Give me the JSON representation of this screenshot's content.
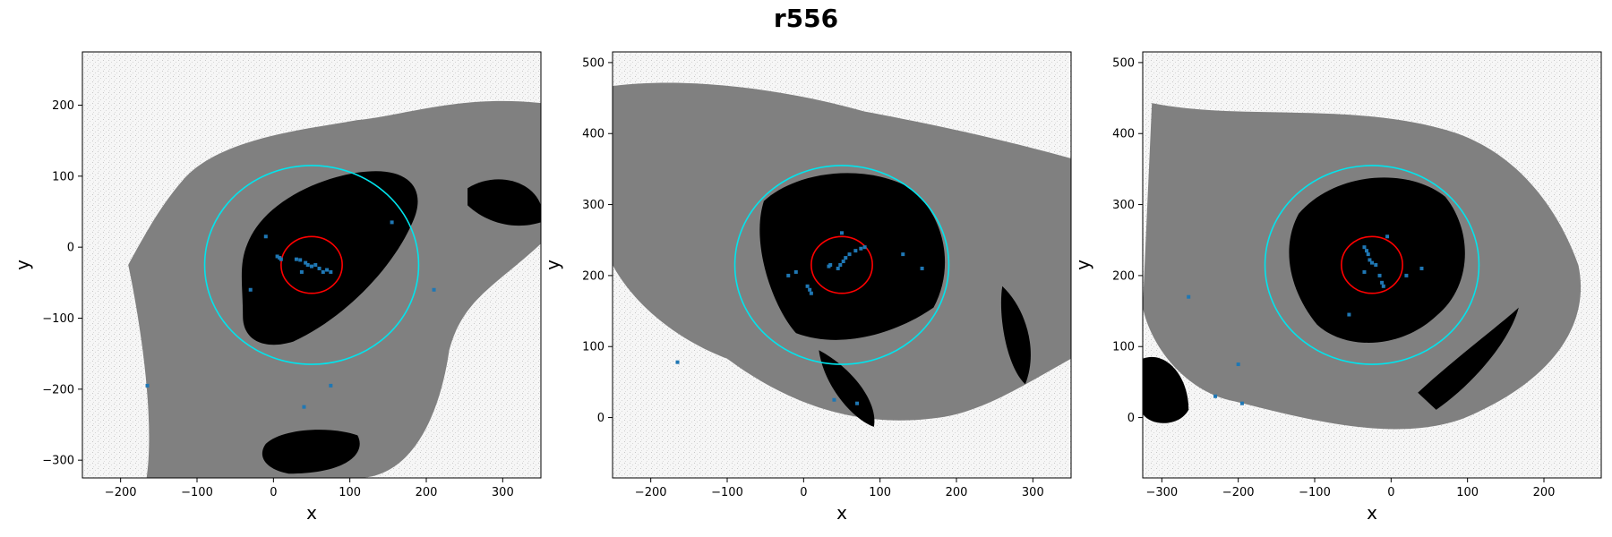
{
  "figure": {
    "title": "r556"
  },
  "colors": {
    "background_speckle": "#f4f4f4",
    "mask_gray": "#808080",
    "object_black": "#000000",
    "points": "#1f77b4",
    "outer_circle": "#00e5ee",
    "inner_circle": "#ff0000",
    "axes": "#000000"
  },
  "chart_data": [
    {
      "type": "scatter",
      "title": "",
      "xlabel": "x",
      "ylabel": "y",
      "xlim": [
        -250,
        350
      ],
      "ylim": [
        -325,
        275
      ],
      "xticks": [
        -200,
        -100,
        0,
        100,
        200,
        300
      ],
      "yticks": [
        -300,
        -200,
        -100,
        0,
        100,
        200
      ],
      "grid": false,
      "circles": [
        {
          "name": "outer",
          "cx": 50,
          "cy": -25,
          "r": 140,
          "color": "#00e5ee"
        },
        {
          "name": "inner",
          "cx": 50,
          "cy": -25,
          "r": 40,
          "color": "#ff0000"
        }
      ],
      "points": [
        [
          5,
          -13
        ],
        [
          8,
          -15
        ],
        [
          10,
          -17
        ],
        [
          30,
          -17
        ],
        [
          35,
          -18
        ],
        [
          37,
          -35
        ],
        [
          42,
          -22
        ],
        [
          45,
          -25
        ],
        [
          50,
          -27
        ],
        [
          55,
          -25
        ],
        [
          60,
          -30
        ],
        [
          65,
          -35
        ],
        [
          70,
          -32
        ],
        [
          75,
          -35
        ],
        [
          -10,
          15
        ],
        [
          155,
          35
        ],
        [
          -30,
          -60
        ],
        [
          210,
          -60
        ],
        [
          -165,
          -195
        ],
        [
          75,
          -195
        ],
        [
          40,
          -225
        ]
      ]
    },
    {
      "type": "scatter",
      "title": "",
      "xlabel": "x",
      "ylabel": "y",
      "xlim": [
        -250,
        350
      ],
      "ylim": [
        -85,
        515
      ],
      "xticks": [
        -200,
        -100,
        0,
        100,
        200,
        300
      ],
      "yticks": [
        0,
        100,
        200,
        300,
        400,
        500
      ],
      "grid": false,
      "circles": [
        {
          "name": "outer",
          "cx": 50,
          "cy": 215,
          "r": 140,
          "color": "#00e5ee"
        },
        {
          "name": "inner",
          "cx": 50,
          "cy": 215,
          "r": 40,
          "color": "#ff0000"
        }
      ],
      "points": [
        [
          45,
          210
        ],
        [
          48,
          215
        ],
        [
          52,
          220
        ],
        [
          55,
          225
        ],
        [
          60,
          230
        ],
        [
          68,
          235
        ],
        [
          75,
          238
        ],
        [
          80,
          240
        ],
        [
          50,
          260
        ],
        [
          35,
          215
        ],
        [
          33,
          213
        ],
        [
          5,
          185
        ],
        [
          8,
          180
        ],
        [
          10,
          175
        ],
        [
          -20,
          200
        ],
        [
          -10,
          205
        ],
        [
          130,
          230
        ],
        [
          155,
          210
        ],
        [
          -165,
          78
        ],
        [
          40,
          25
        ],
        [
          70,
          20
        ]
      ]
    },
    {
      "type": "scatter",
      "title": "",
      "xlabel": "x",
      "ylabel": "y",
      "xlim": [
        -325,
        275
      ],
      "ylim": [
        -85,
        515
      ],
      "xticks": [
        -300,
        -200,
        -100,
        0,
        100,
        200
      ],
      "yticks": [
        0,
        100,
        200,
        300,
        400,
        500
      ],
      "grid": false,
      "circles": [
        {
          "name": "outer",
          "cx": -25,
          "cy": 215,
          "r": 140,
          "color": "#00e5ee"
        },
        {
          "name": "inner",
          "cx": -25,
          "cy": 215,
          "r": 40,
          "color": "#ff0000"
        }
      ],
      "points": [
        [
          -35,
          240
        ],
        [
          -32,
          235
        ],
        [
          -30,
          230
        ],
        [
          -28,
          222
        ],
        [
          -25,
          218
        ],
        [
          -20,
          215
        ],
        [
          -15,
          200
        ],
        [
          -12,
          190
        ],
        [
          -10,
          185
        ],
        [
          -35,
          205
        ],
        [
          -5,
          255
        ],
        [
          20,
          200
        ],
        [
          40,
          210
        ],
        [
          -55,
          145
        ],
        [
          -265,
          170
        ],
        [
          -200,
          75
        ],
        [
          -195,
          20
        ],
        [
          -230,
          30
        ]
      ]
    }
  ]
}
